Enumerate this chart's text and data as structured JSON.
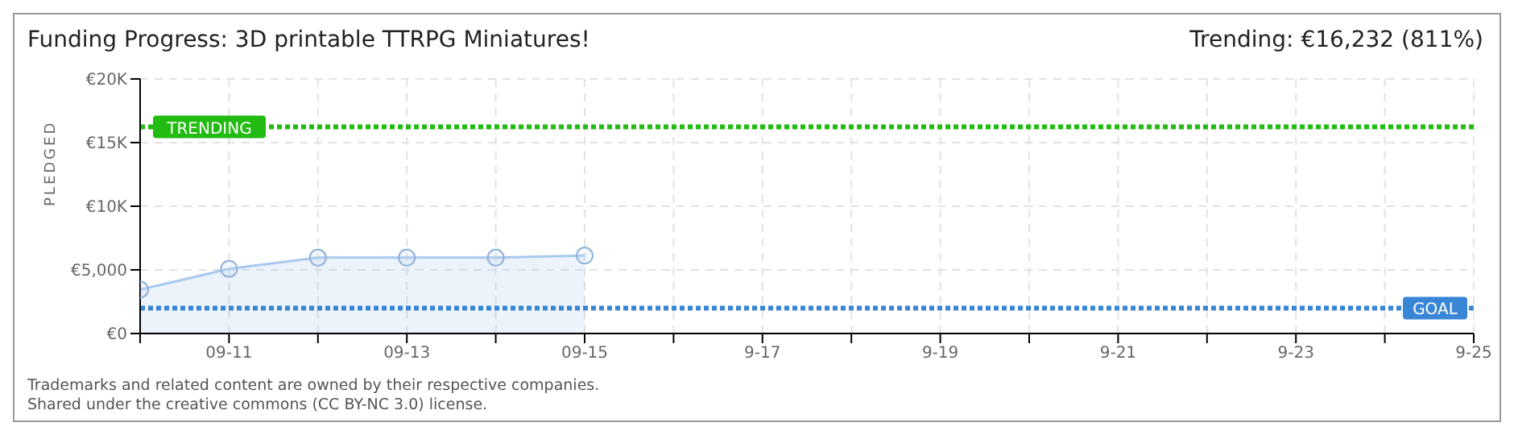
{
  "chart_data": {
    "type": "area",
    "title": "Funding Progress: 3D printable TTRPG Miniatures!",
    "ylabel": "PLEDGED",
    "annotations": [
      "Trending: €16,232 (811%)",
      "Trademarks and related content are owned by their respective companies.",
      "Shared under the creative commons (CC BY-NC 3.0) license."
    ],
    "categories": [
      null,
      "09-11",
      null,
      "09-13",
      null,
      "09-15",
      null,
      "9-17",
      null,
      "9-19",
      null,
      "9-21",
      null,
      "9-23",
      null,
      "9-25"
    ],
    "series": [
      {
        "color": "#a9c9ee",
        "values": [
          3450,
          5080,
          5960,
          5960,
          5960,
          6120,
          null,
          null,
          null,
          null,
          null,
          null,
          null,
          null,
          null,
          null
        ]
      }
    ],
    "ylim": [
      0,
      20000
    ],
    "yticks": [
      {
        "value": 0,
        "label": "€0"
      },
      {
        "value": 5000,
        "label": "€5,000"
      },
      {
        "value": 10000,
        "label": "€10K"
      },
      {
        "value": 15000,
        "label": "€15K"
      },
      {
        "value": 20000,
        "label": "€20K"
      }
    ],
    "ref_lines": [
      {
        "axis": "y",
        "value": 16232,
        "label": "TRENDING",
        "color": "#22bb11",
        "line_style": "dotted"
      },
      {
        "axis": "y",
        "value": 2000,
        "label": "GOAL",
        "color": "#3a86d6",
        "line_style": "dotted"
      }
    ],
    "grid": true,
    "marker": "circle",
    "legend": false
  }
}
